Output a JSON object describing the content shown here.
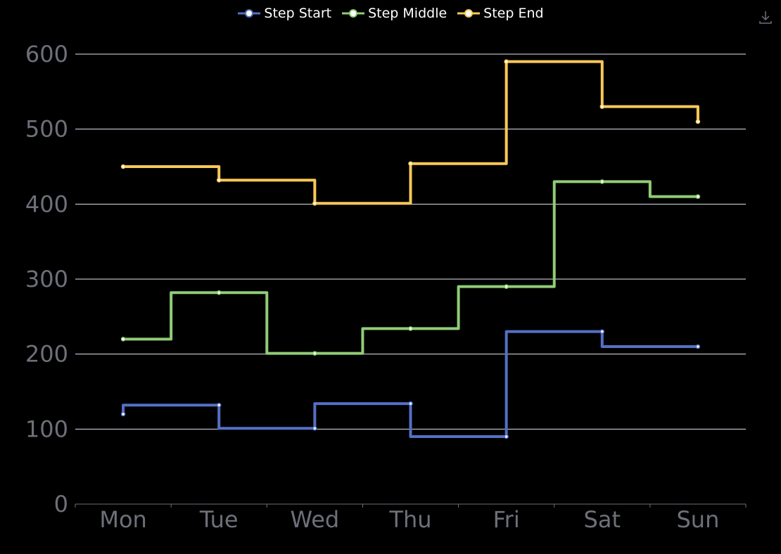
{
  "toolbox": {
    "icon": "download-icon"
  },
  "chart_data": {
    "type": "line",
    "step": true,
    "categories": [
      "Mon",
      "Tue",
      "Wed",
      "Thu",
      "Fri",
      "Sat",
      "Sun"
    ],
    "ylim": [
      0,
      600
    ],
    "yticks": [
      "0",
      "100",
      "200",
      "300",
      "400",
      "500",
      "600"
    ],
    "grid": true,
    "legend_position": "top-center",
    "series": [
      {
        "name": "Step Start",
        "step_mode": "start",
        "color": "#5470c6",
        "values": [
          120,
          132,
          101,
          134,
          90,
          230,
          210
        ]
      },
      {
        "name": "Step Middle",
        "step_mode": "middle",
        "color": "#91cc75",
        "values": [
          220,
          282,
          201,
          234,
          290,
          430,
          410
        ]
      },
      {
        "name": "Step End",
        "step_mode": "end",
        "color": "#fac858",
        "values": [
          450,
          432,
          401,
          454,
          590,
          530,
          510
        ]
      }
    ]
  }
}
